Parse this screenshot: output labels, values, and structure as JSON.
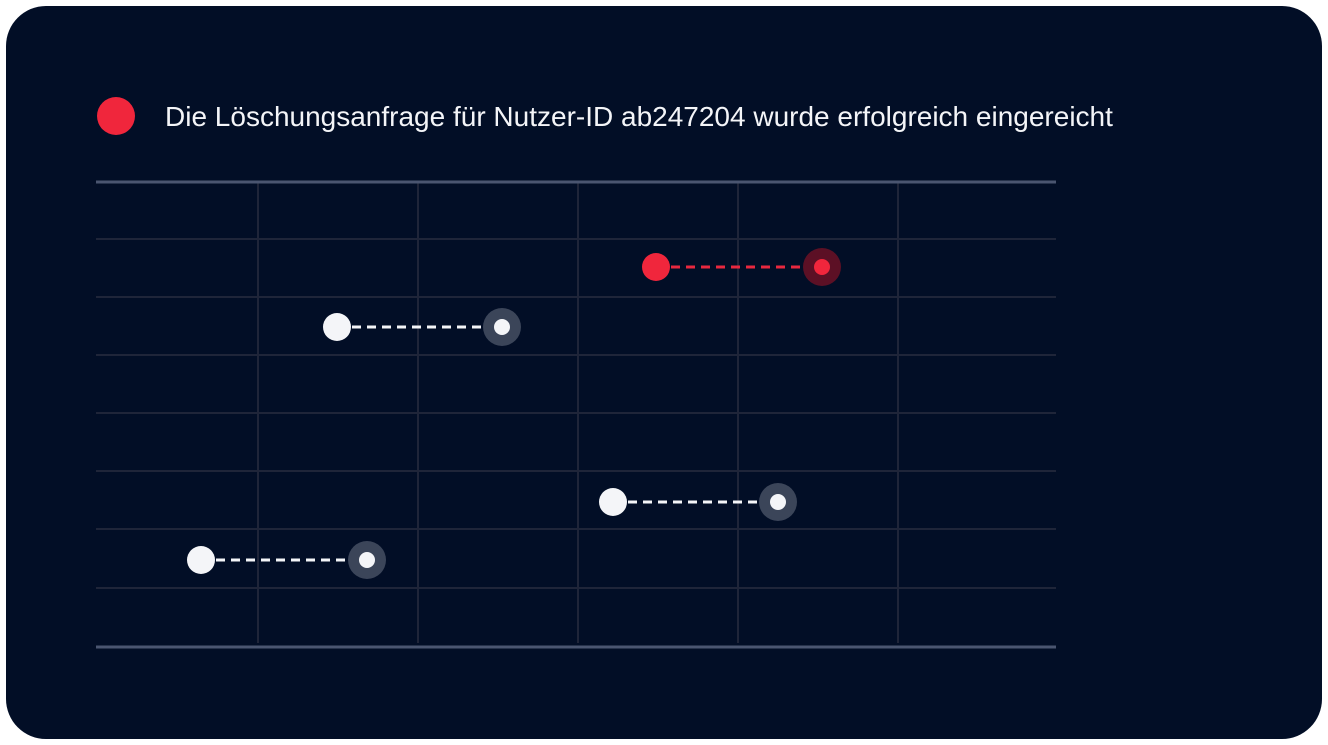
{
  "message": {
    "text": "Die Löschungsanfrage für Nutzer-ID ab247204 wurde erfolgreich eingereicht"
  }
}
